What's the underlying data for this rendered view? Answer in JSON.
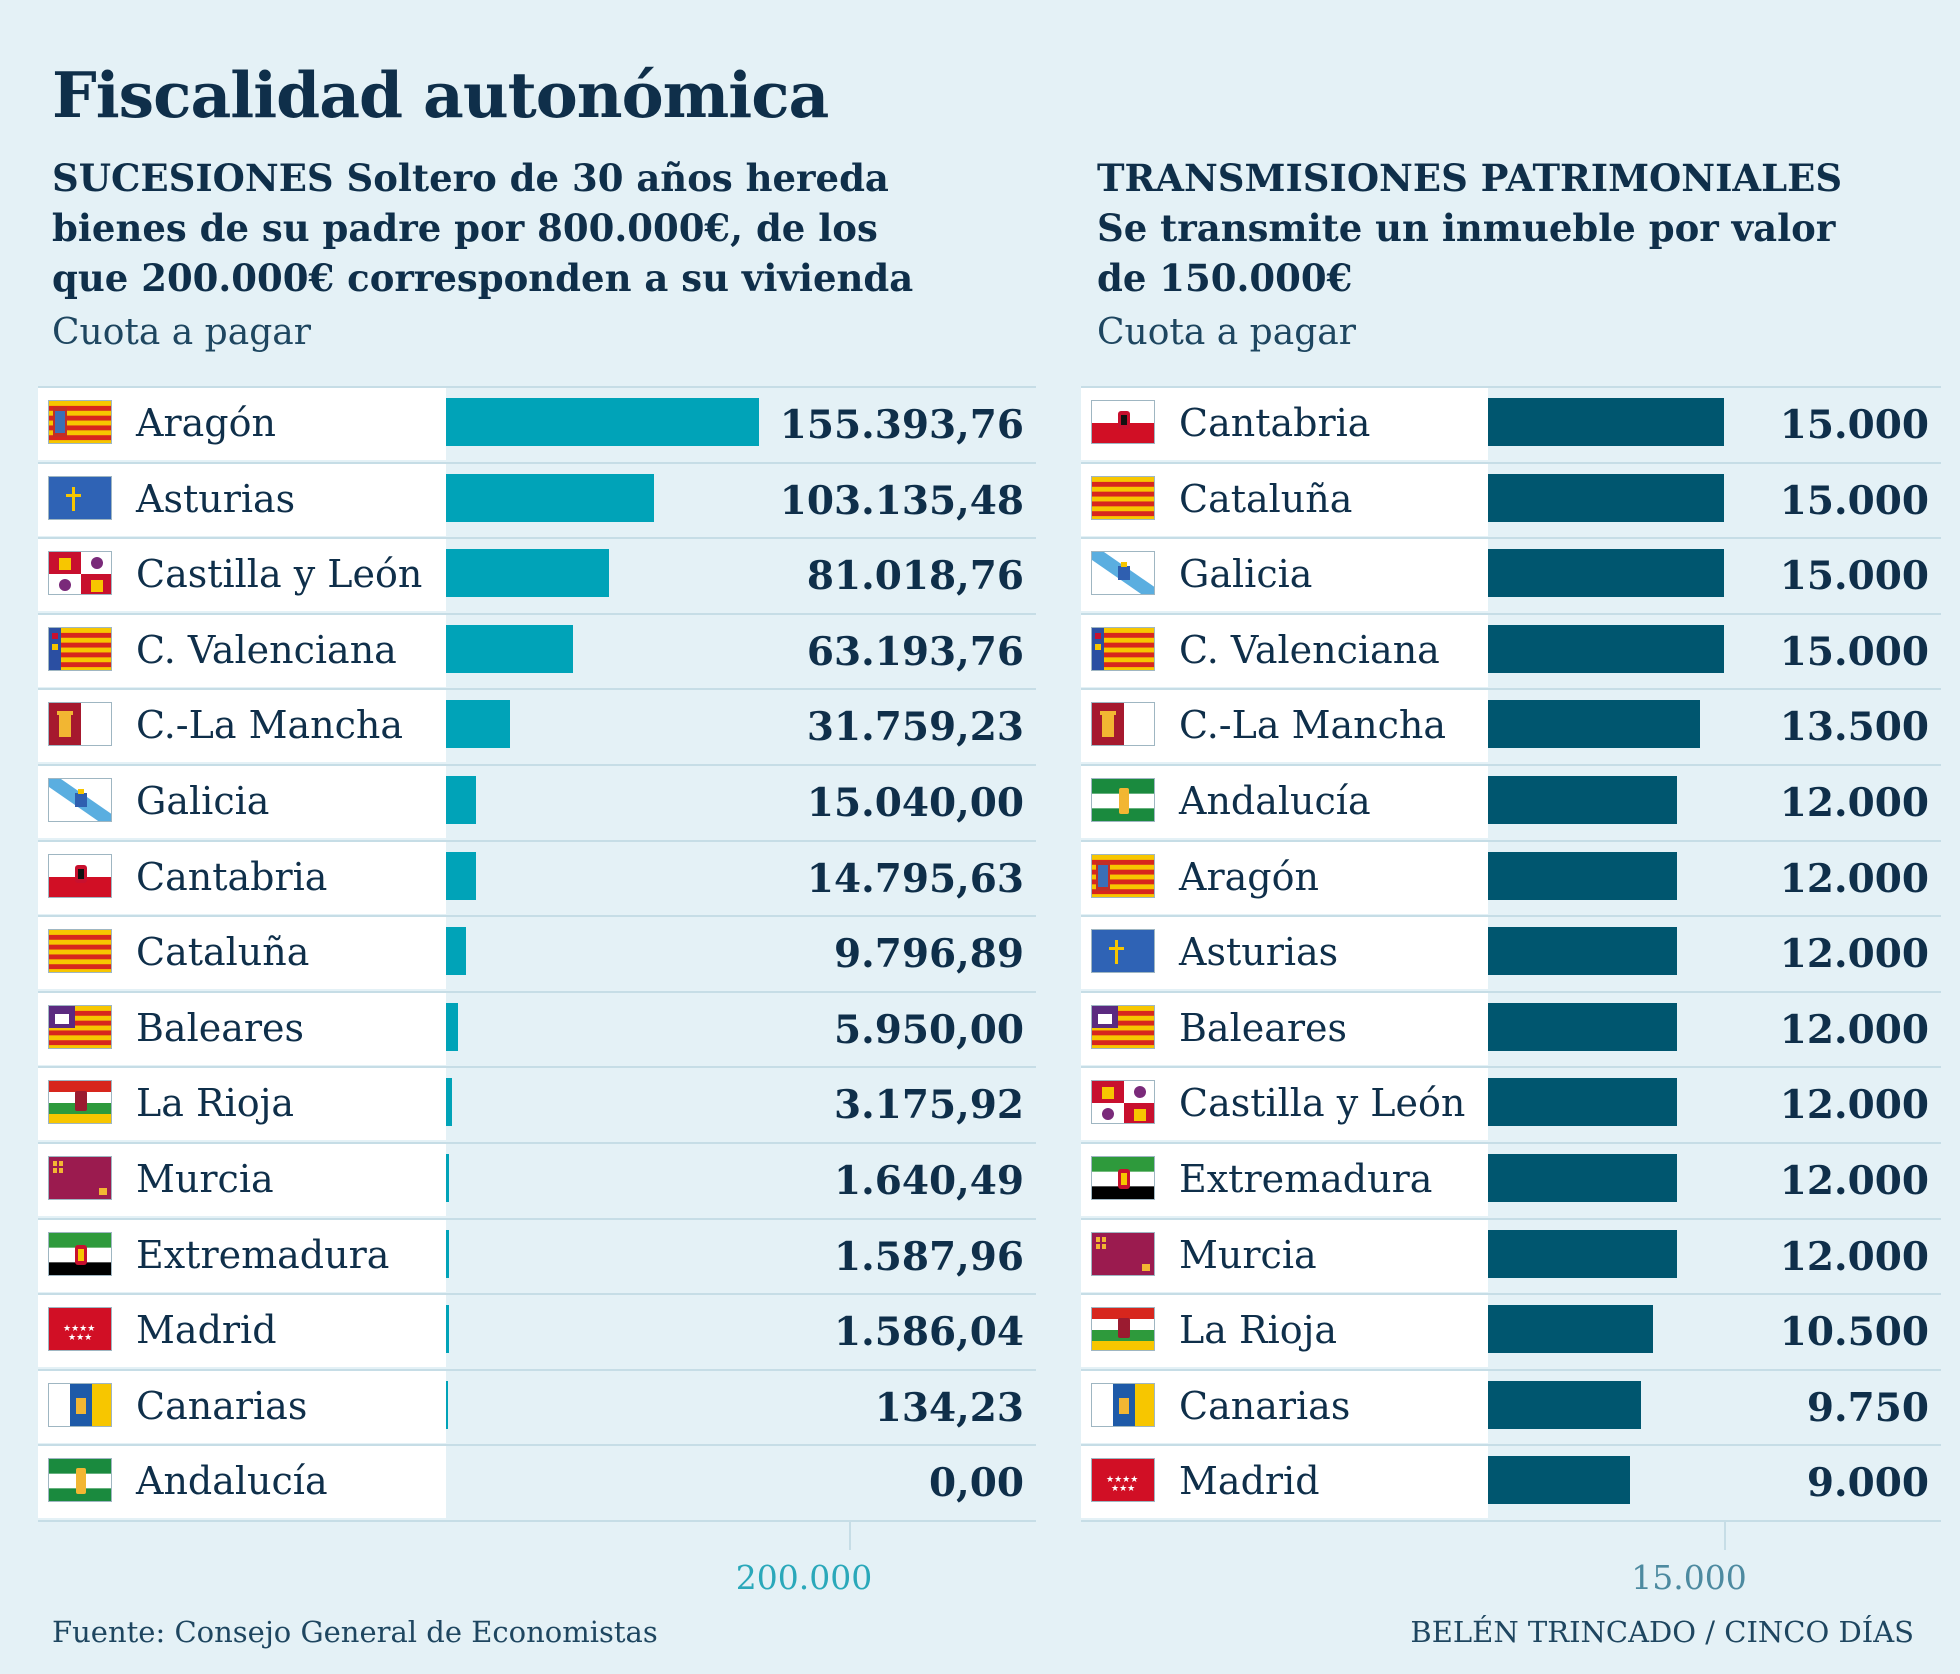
{
  "title": "Fiscalidad autonómica",
  "footer": {
    "source": "Fuente: Consejo General de Economistas",
    "credit": "BELÉN TRINCADO / CINCO DÍAS"
  },
  "colors": {
    "left_bar": "#00a3b8",
    "right_bar": "#00566f",
    "background": "#e4f1f6",
    "text": "#0f2f4a"
  },
  "chart_data": [
    {
      "type": "bar",
      "orientation": "horizontal",
      "subtitle_lines": [
        "SUCESIONES Soltero de 30 años hereda",
        "bienes de su padre por 800.000€, de los",
        "que 200.000€ corresponden a su vivienda"
      ],
      "ylabel": "Cuota a pagar",
      "categories": [
        "Aragón",
        "Asturias",
        "Castilla y León",
        "C. Valenciana",
        "C.-La Mancha",
        "Galicia",
        "Cantabria",
        "Cataluña",
        "Baleares",
        "La Rioja",
        "Murcia",
        "Extremadura",
        "Madrid",
        "Canarias",
        "Andalucía"
      ],
      "values": [
        155393.76,
        103135.48,
        81018.76,
        63193.76,
        31759.23,
        15040.0,
        14795.63,
        9796.89,
        5950.0,
        3175.92,
        1640.49,
        1587.96,
        1586.04,
        134.23,
        0.0
      ],
      "value_labels": [
        "155.393,76",
        "103.135,48",
        "81.018,76",
        "63.193,76",
        "31.759,23",
        "15.040,00",
        "14.795,63",
        "9.796,89",
        "5.950,00",
        "3.175,92",
        "1.640,49",
        "1.587,96",
        "1.586,04",
        "134,23",
        "0,00"
      ],
      "flags": [
        "aragon",
        "asturias",
        "castilla-leon",
        "valenciana",
        "la-mancha",
        "galicia",
        "cantabria",
        "cataluna",
        "baleares",
        "la-rioja",
        "murcia",
        "extremadura",
        "madrid",
        "canarias",
        "andalucia"
      ],
      "xlim": [
        0,
        200000
      ],
      "tick_value": 200000,
      "tick_label": "200.000",
      "tick_color": "#2aa8ba"
    },
    {
      "type": "bar",
      "orientation": "horizontal",
      "subtitle_lines": [
        "TRANSMISIONES PATRIMONIALES",
        "Se transmite un inmueble por valor",
        "de 150.000€"
      ],
      "ylabel": "Cuota a pagar",
      "categories": [
        "Cantabria",
        "Cataluña",
        "Galicia",
        "C. Valenciana",
        "C.-La Mancha",
        "Andalucía",
        "Aragón",
        "Asturias",
        "Baleares",
        "Castilla y León",
        "Extremadura",
        "Murcia",
        "La Rioja",
        "Canarias",
        "Madrid"
      ],
      "values": [
        15000,
        15000,
        15000,
        15000,
        13500,
        12000,
        12000,
        12000,
        12000,
        12000,
        12000,
        12000,
        10500,
        9750,
        9000
      ],
      "value_labels": [
        "15.000",
        "15.000",
        "15.000",
        "15.000",
        "13.500",
        "12.000",
        "12.000",
        "12.000",
        "12.000",
        "12.000",
        "12.000",
        "12.000",
        "10.500",
        "9.750",
        "9.000"
      ],
      "flags": [
        "cantabria",
        "cataluna",
        "galicia",
        "valenciana",
        "la-mancha",
        "andalucia",
        "aragon",
        "asturias",
        "baleares",
        "castilla-leon",
        "extremadura",
        "murcia",
        "la-rioja",
        "canarias",
        "madrid"
      ],
      "xlim": [
        0,
        15000
      ],
      "tick_value": 15000,
      "tick_label": "15.000",
      "tick_color": "#4d8aa0"
    }
  ]
}
